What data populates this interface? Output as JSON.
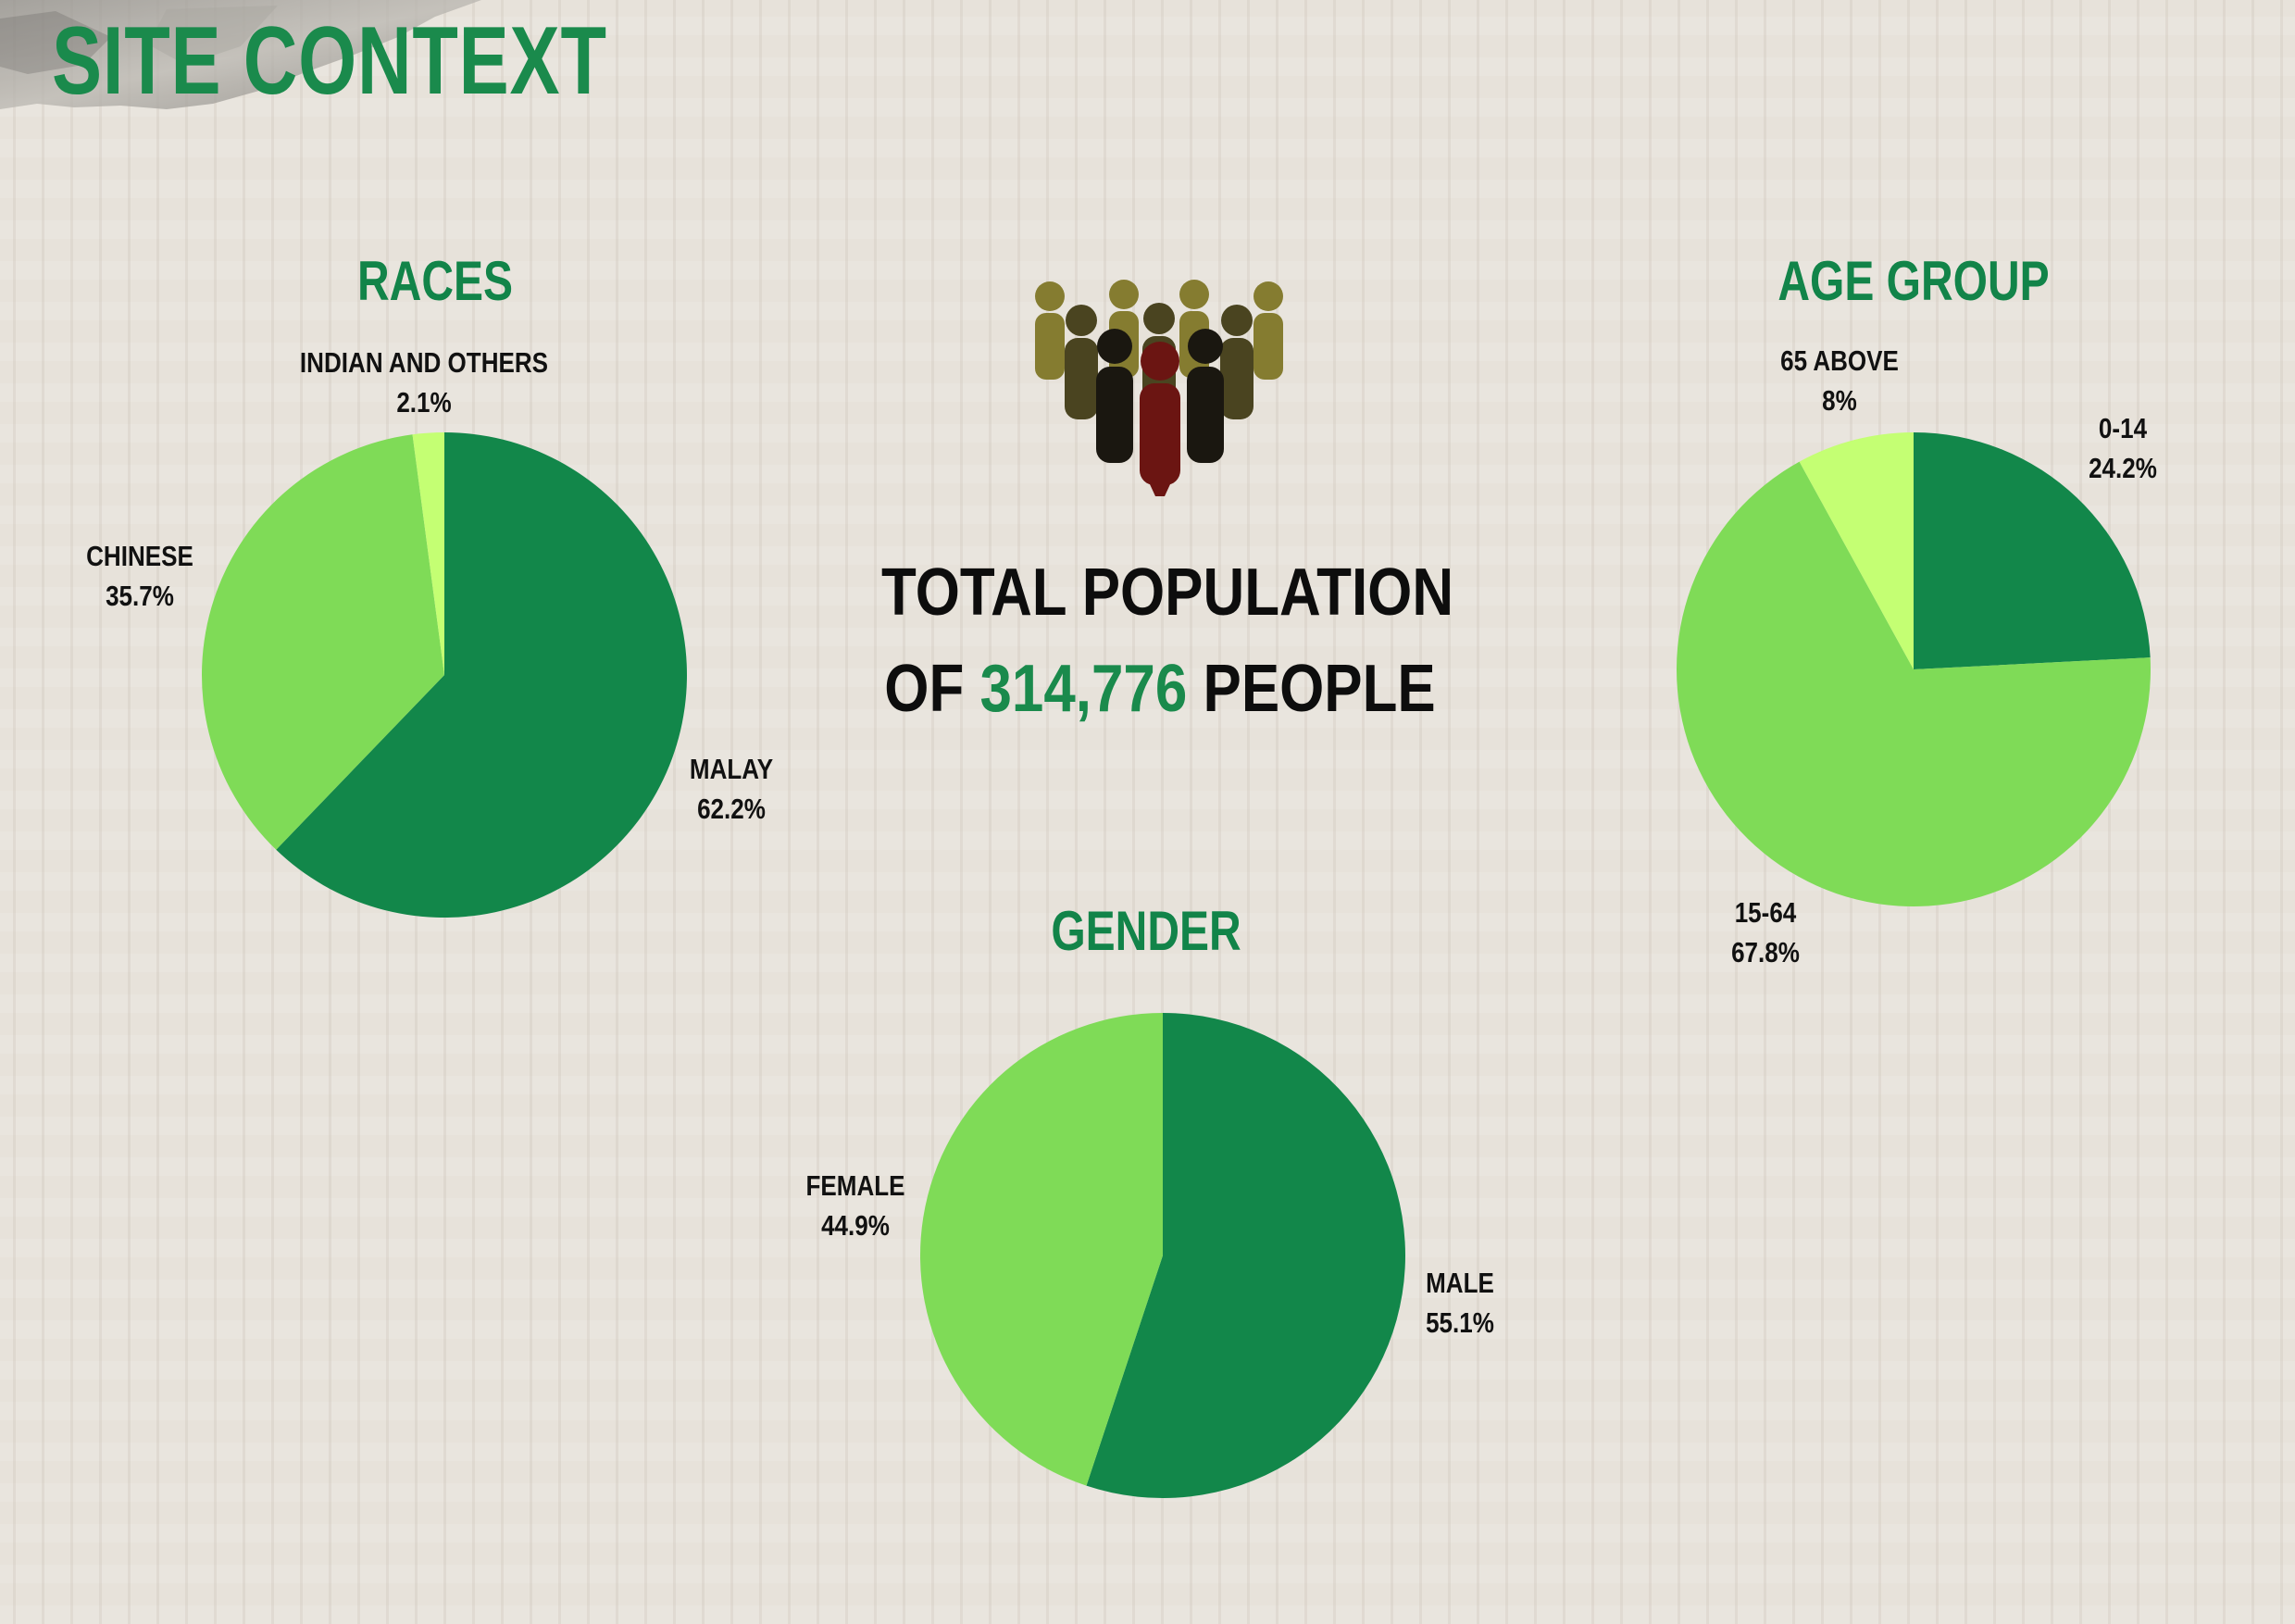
{
  "page": {
    "title": "SITE CONTEXT"
  },
  "colors": {
    "title_green": "#1a8a4c",
    "dark_green": "#12874a",
    "light_green": "#7fdb57",
    "lime": "#c4ff73",
    "people_olive": "#857c30",
    "people_dark": "#1a1710",
    "people_red": "#6b1512"
  },
  "summary": {
    "line1": "TOTAL POPULATION",
    "prefix": "OF",
    "value": "314,776",
    "suffix": "PEOPLE",
    "icon": "people-group-icon"
  },
  "chart_data": [
    {
      "type": "pie",
      "title": "RACES",
      "labels": [
        "MALAY",
        "CHINESE",
        "INDIAN AND OTHERS"
      ],
      "values": [
        62.2,
        35.7,
        2.1
      ],
      "value_labels": [
        "62.2%",
        "35.7%",
        "2.1%"
      ],
      "colors": [
        "#12874a",
        "#7fdb57",
        "#c4ff73"
      ],
      "start": "12 o'clock",
      "direction": "clockwise"
    },
    {
      "type": "pie",
      "title": "AGE GROUP",
      "labels": [
        "0-14",
        "15-64",
        "65 ABOVE"
      ],
      "values": [
        24.2,
        67.8,
        8
      ],
      "value_labels": [
        "24.2%",
        "67.8%",
        "8%"
      ],
      "colors": [
        "#12874a",
        "#7fdb57",
        "#c4ff73"
      ],
      "start": "12 o'clock",
      "direction": "clockwise"
    },
    {
      "type": "pie",
      "title": "GENDER",
      "labels": [
        "MALE",
        "FEMALE"
      ],
      "values": [
        55.1,
        44.9
      ],
      "value_labels": [
        "55.1%",
        "44.9%"
      ],
      "colors": [
        "#12874a",
        "#7fdb57"
      ],
      "start": "12 o'clock",
      "direction": "clockwise"
    }
  ]
}
